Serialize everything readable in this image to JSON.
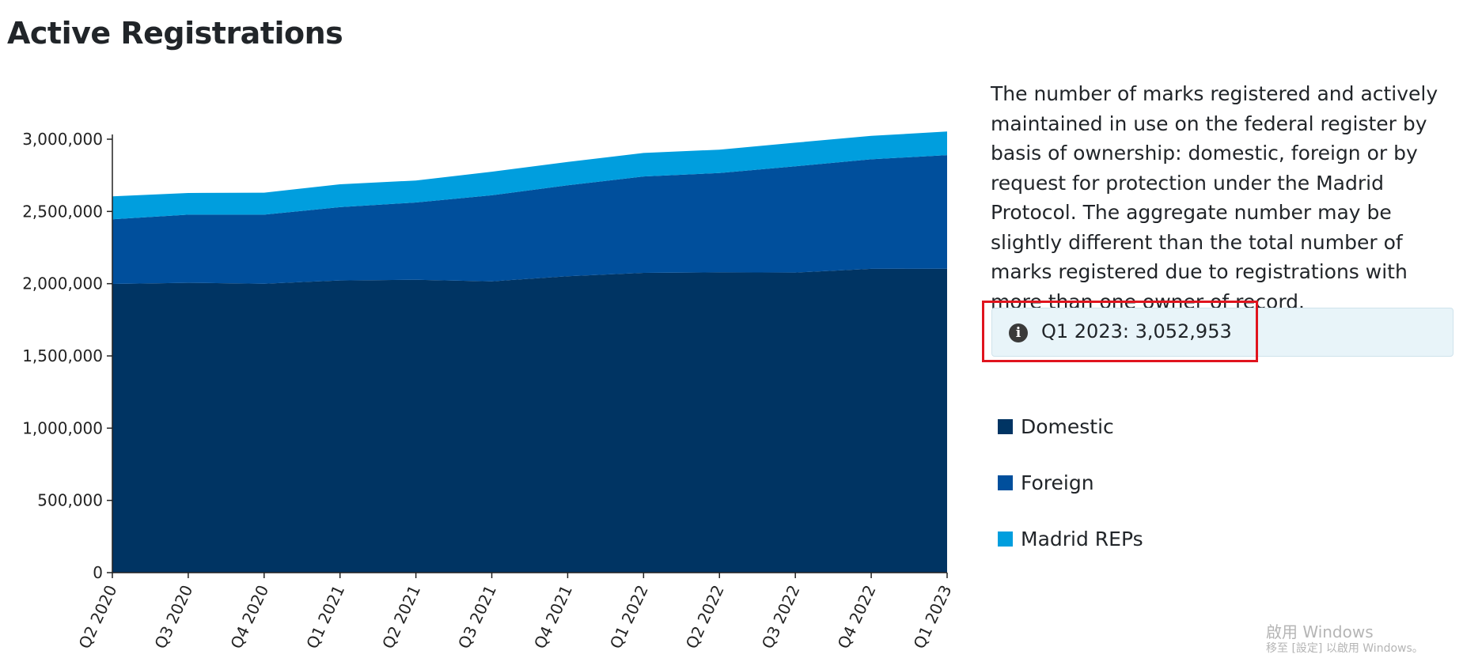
{
  "page": {
    "title": "Active Registrations",
    "description": "The number of marks registered and actively maintained in use on the federal register by basis of ownership: domestic, foreign or by request for protection under the Madrid Protocol. The aggregate number may be slightly different than the total number of marks registered due to registrations with more than one owner of record.",
    "tooltip": "Q1 2023: 3,052,953",
    "watermark_line1": "啟用 Windows",
    "watermark_line2": "移至 [設定] 以啟用 Windows。"
  },
  "colors": {
    "domestic": "#003463",
    "foreign": "#004f9c",
    "madrid": "#009ede",
    "highlight": "#e0141e"
  },
  "chart_data": {
    "type": "area",
    "stacked": true,
    "categories": [
      "Q2 2020",
      "Q3 2020",
      "Q4 2020",
      "Q1 2021",
      "Q2 2021",
      "Q3 2021",
      "Q4 2021",
      "Q1 2022",
      "Q2 2022",
      "Q3 2022",
      "Q4 2022",
      "Q1 2023"
    ],
    "series": [
      {
        "name": "Domestic",
        "color": "#003463",
        "values": [
          1998000,
          2006000,
          2000000,
          2022000,
          2027000,
          2016000,
          2052000,
          2075000,
          2078000,
          2077000,
          2103000,
          2104000
        ]
      },
      {
        "name": "Foreign",
        "color": "#004f9c",
        "values": [
          448000,
          472000,
          478000,
          508000,
          535000,
          596000,
          629000,
          667000,
          688000,
          736000,
          758000,
          786000
        ]
      },
      {
        "name": "Madrid REPs",
        "color": "#009ede",
        "values": [
          158000,
          150000,
          152000,
          158000,
          152000,
          163000,
          162000,
          163000,
          162000,
          163000,
          162000,
          163000
        ]
      }
    ],
    "ylim": [
      0,
      3000000
    ],
    "yticks": [
      0,
      500000,
      1000000,
      1500000,
      2000000,
      2500000,
      3000000
    ],
    "ytick_labels": [
      "0",
      "500,000",
      "1,000,000",
      "1,500,000",
      "2,000,000",
      "2,500,000",
      "3,000,000"
    ],
    "legend": [
      "Domestic",
      "Foreign",
      "Madrid REPs"
    ],
    "legend_placement": "right",
    "grid": false
  }
}
